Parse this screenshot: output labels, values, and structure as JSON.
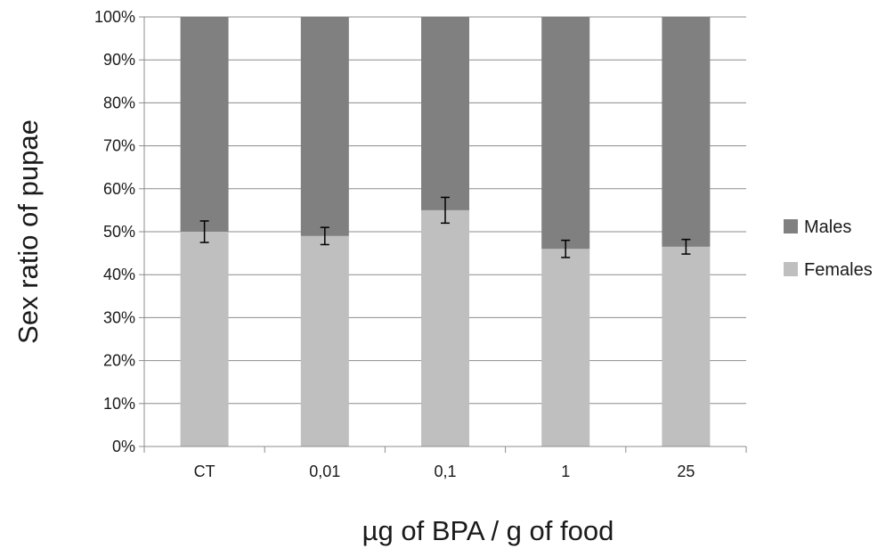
{
  "chart_data": {
    "type": "bar",
    "stacked": true,
    "categories": [
      "CT",
      "0,01",
      "0,1",
      "1",
      "25"
    ],
    "series": [
      {
        "name": "Females",
        "values": [
          50,
          49,
          55,
          46,
          46.5
        ],
        "error": [
          2.5,
          2,
          3,
          2,
          1.7
        ],
        "color": "#bfbfbf"
      },
      {
        "name": "Males",
        "values": [
          50,
          51,
          45,
          54,
          53.5
        ],
        "color": "#808080"
      }
    ],
    "xlabel": "µg of BPA / g of food",
    "ylabel": "Sex ratio of pupae",
    "ylim": [
      0,
      100
    ],
    "yticks": [
      "0%",
      "10%",
      "20%",
      "30%",
      "40%",
      "50%",
      "60%",
      "70%",
      "80%",
      "90%",
      "100%"
    ],
    "grid": true,
    "legend": {
      "position": "right",
      "entries": [
        "Males",
        "Females"
      ]
    }
  }
}
